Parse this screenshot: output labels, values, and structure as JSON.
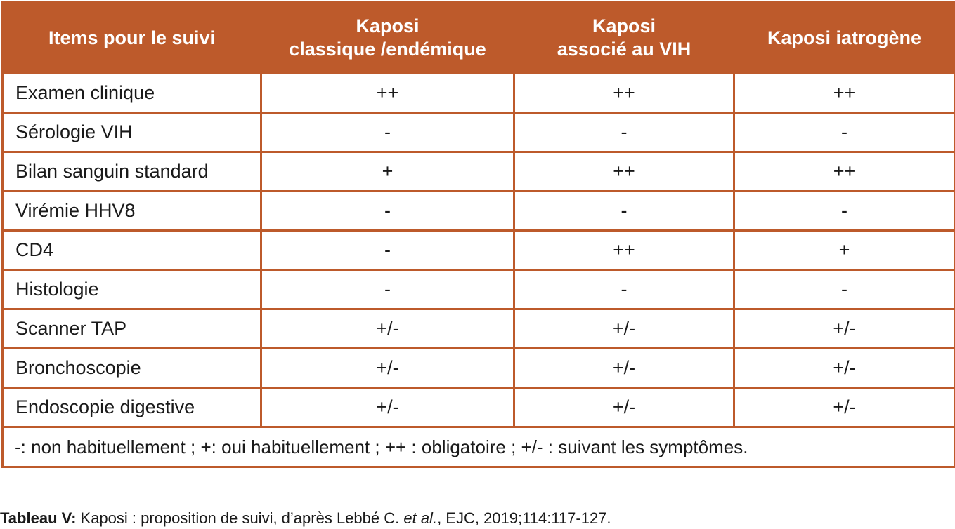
{
  "table": {
    "headers": [
      "Items pour le suivi",
      "Kaposi\nclassique /endémique",
      "Kaposi\nassocié au VIH",
      "Kaposi iatrogène"
    ],
    "rows": [
      [
        "Examen clinique",
        "++",
        "++",
        "++"
      ],
      [
        "Sérologie VIH",
        "-",
        "-",
        "-"
      ],
      [
        "Bilan sanguin standard",
        "+",
        "++",
        "++"
      ],
      [
        "Virémie HHV8",
        "-",
        "-",
        "-"
      ],
      [
        "CD4",
        "-",
        "++",
        "+"
      ],
      [
        "Histologie",
        "-",
        "-",
        "-"
      ],
      [
        "Scanner TAP",
        "+/-",
        "+/-",
        "+/-"
      ],
      [
        "Bronchoscopie",
        "+/-",
        "+/-",
        "+/-"
      ],
      [
        "Endoscopie digestive",
        "+/-",
        "+/-",
        "+/-"
      ]
    ],
    "legend": "-: non habituellement ; +: oui habituellement ; ++ : obligatoire ; +/- : suivant les symptômes."
  },
  "caption": {
    "label": "Tableau V:",
    "text_before": " Kaposi : proposition de suivi, d’après Lebbé C. ",
    "italic": "et al.",
    "text_after": ", EJC, 2019;114:117-127."
  },
  "colors": {
    "accent": "#bd5a2b"
  }
}
